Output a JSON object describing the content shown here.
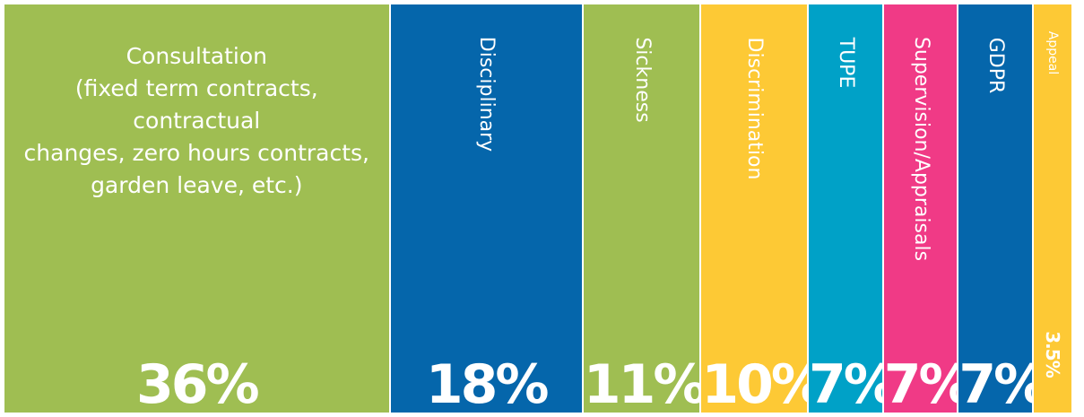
{
  "chart_data": {
    "type": "bar",
    "orientation": "stacked-100-percent-horizontal",
    "categories": [
      "Consultation\n(fixed term contracts, contractual\nchanges, zero hours contracts,\ngarden leave, etc.)",
      "Disciplinary",
      "Sickness",
      "Discrimination",
      "TUPE",
      "Supervision/Appraisals",
      "GDPR",
      "Appeal"
    ],
    "values": [
      36,
      18,
      11,
      10,
      7,
      7,
      7,
      3.5
    ],
    "value_labels": [
      "36%",
      "18%",
      "11%",
      "10%",
      "7%",
      "7%",
      "7%",
      "3.5%"
    ],
    "colors": [
      "#9fbe52",
      "#0566ab",
      "#9fbe52",
      "#fdc935",
      "#00a1c7",
      "#f03a86",
      "#0566ab",
      "#fdc935"
    ],
    "label_orientation": [
      "horizontal",
      "vertical",
      "vertical",
      "vertical",
      "vertical",
      "vertical",
      "vertical",
      "vertical"
    ],
    "title": "",
    "xlabel": "",
    "ylabel": "",
    "legend": "none",
    "grid": false
  }
}
